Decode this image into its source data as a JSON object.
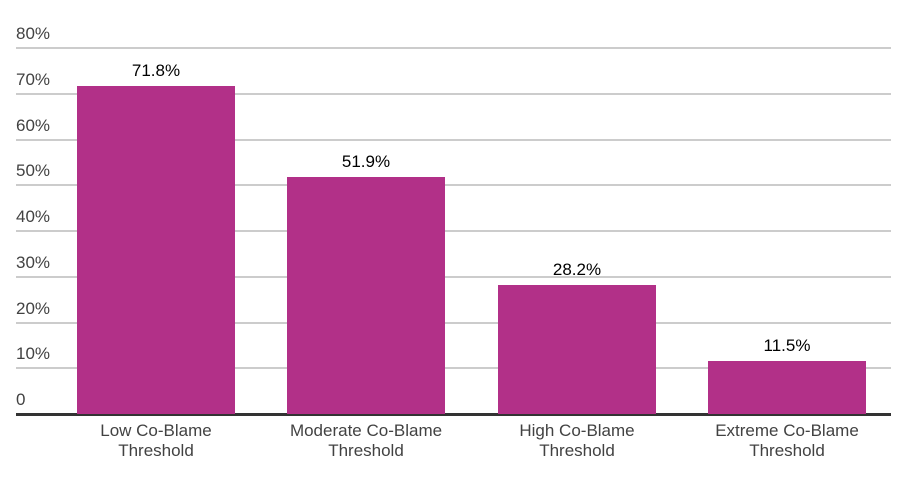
{
  "chart_data": {
    "type": "bar",
    "title": "",
    "xlabel": "",
    "ylabel": "",
    "categories": [
      "Low Co-Blame Threshold",
      "Moderate Co-Blame Threshold",
      "High Co-Blame Threshold",
      "Extreme Co-Blame Threshold"
    ],
    "category_lines": [
      [
        "Low Co-Blame",
        "Threshold"
      ],
      [
        "Moderate Co-Blame",
        "Threshold"
      ],
      [
        "High Co-Blame",
        "Threshold"
      ],
      [
        "Extreme Co-Blame",
        "Threshold"
      ]
    ],
    "values": [
      71.8,
      51.9,
      28.2,
      11.5
    ],
    "value_labels": [
      "71.8%",
      "51.9%",
      "28.2%",
      "11.5%"
    ],
    "ylim": [
      0,
      80
    ],
    "y_ticks": [
      {
        "value": 80,
        "label": "80%"
      },
      {
        "value": 70,
        "label": "70%"
      },
      {
        "value": 60,
        "label": "60%"
      },
      {
        "value": 50,
        "label": "50%"
      },
      {
        "value": 40,
        "label": "40%"
      },
      {
        "value": 30,
        "label": "30%"
      },
      {
        "value": 20,
        "label": "20%"
      },
      {
        "value": 10,
        "label": "10%"
      },
      {
        "value": 0,
        "label": "0"
      }
    ],
    "grid": "horizontal",
    "legend": "none",
    "colors": {
      "bar": "#b23088",
      "gridline": "#cccccc",
      "baseline": "#333333",
      "axis_text": "#424242",
      "value_label_text": "#000000",
      "background": "#ffffff"
    }
  }
}
